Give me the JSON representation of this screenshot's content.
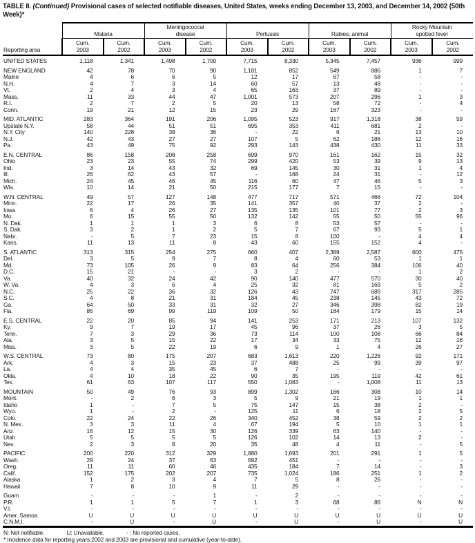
{
  "title": {
    "prefix": "TABLE II.",
    "continued": "(Continued)",
    "rest": "Provisional cases of selected notifiable diseases, United States, weeks ending December 13, 2003, and December 14, 2002 (50th Week)*"
  },
  "table": {
    "reporting_area_label": "Reporting area",
    "groups": [
      "Malaria",
      "Meningococcal\ndisease",
      "Pertussis",
      "Rabies, animal",
      "Rocky Mountain\nspotted fever"
    ],
    "col_headers": [
      "Cum.\n2003",
      "Cum.\n2002"
    ],
    "sections": [
      [
        {
          "a": "UNITED STATES",
          "v": [
            "1,118",
            "1,341",
            "1,498",
            "1,700",
            "7,715",
            "8,330",
            "5,345",
            "7,457",
            "936",
            "999"
          ]
        }
      ],
      [
        {
          "a": "NEW ENGLAND",
          "v": [
            "42",
            "78",
            "70",
            "90",
            "1,181",
            "852",
            "549",
            "886",
            "1",
            "7"
          ]
        },
        {
          "a": "Maine",
          "v": [
            "4",
            "6",
            "6",
            "5",
            "12",
            "17",
            "67",
            "58",
            "-",
            "-"
          ]
        },
        {
          "a": "N.H.",
          "v": [
            "4",
            "7",
            "3",
            "14",
            "60",
            "57",
            "13",
            "48",
            "-",
            "-"
          ]
        },
        {
          "a": "Vt.",
          "v": [
            "2",
            "4",
            "3",
            "4",
            "65",
            "163",
            "37",
            "89",
            "-",
            "-"
          ]
        },
        {
          "a": "Mass.",
          "v": [
            "11",
            "33",
            "44",
            "47",
            "1,001",
            "573",
            "207",
            "296",
            "1",
            "3"
          ]
        },
        {
          "a": "R.I.",
          "v": [
            "2",
            "7",
            "2",
            "5",
            "20",
            "13",
            "58",
            "72",
            "-",
            "4"
          ]
        },
        {
          "a": "Conn.",
          "v": [
            "19",
            "21",
            "12",
            "15",
            "23",
            "29",
            "167",
            "323",
            "-",
            "-"
          ]
        }
      ],
      [
        {
          "a": "MID. ATLANTIC",
          "v": [
            "283",
            "364",
            "191",
            "206",
            "1,095",
            "523",
            "917",
            "1,318",
            "38",
            "59"
          ]
        },
        {
          "a": "Upstate N.Y.",
          "v": [
            "58",
            "44",
            "51",
            "51",
            "695",
            "353",
            "411",
            "681",
            "2",
            "-"
          ]
        },
        {
          "a": "N.Y. City",
          "v": [
            "140",
            "228",
            "38",
            "36",
            "-",
            "22",
            "6",
            "21",
            "13",
            "10"
          ]
        },
        {
          "a": "N.J.",
          "v": [
            "42",
            "43",
            "27",
            "27",
            "107",
            "5",
            "62",
            "186",
            "12",
            "16"
          ]
        },
        {
          "a": "Pa.",
          "v": [
            "43",
            "49",
            "75",
            "92",
            "293",
            "143",
            "438",
            "430",
            "11",
            "33"
          ]
        }
      ],
      [
        {
          "a": "E.N. CENTRAL",
          "v": [
            "86",
            "158",
            "208",
            "258",
            "699",
            "970",
            "161",
            "162",
            "15",
            "32"
          ]
        },
        {
          "a": "Ohio",
          "v": [
            "23",
            "23",
            "55",
            "74",
            "299",
            "420",
            "53",
            "39",
            "9",
            "13"
          ]
        },
        {
          "a": "Ind.",
          "v": [
            "3",
            "14",
            "43",
            "32",
            "69",
            "145",
            "30",
            "31",
            "1",
            "4"
          ]
        },
        {
          "a": "Ill.",
          "v": [
            "26",
            "62",
            "43",
            "57",
            "-",
            "168",
            "24",
            "31",
            "-",
            "12"
          ]
        },
        {
          "a": "Mich.",
          "v": [
            "24",
            "45",
            "46",
            "45",
            "116",
            "60",
            "47",
            "46",
            "5",
            "3"
          ]
        },
        {
          "a": "Wis.",
          "v": [
            "10",
            "14",
            "21",
            "50",
            "215",
            "177",
            "7",
            "15",
            "-",
            "-"
          ]
        }
      ],
      [
        {
          "a": "W.N. CENTRAL",
          "v": [
            "49",
            "57",
            "127",
            "148",
            "477",
            "717",
            "571",
            "466",
            "72",
            "104"
          ]
        },
        {
          "a": "Minn.",
          "v": [
            "22",
            "17",
            "26",
            "35",
            "141",
            "357",
            "40",
            "37",
            "2",
            "-"
          ]
        },
        {
          "a": "Iowa",
          "v": [
            "6",
            "4",
            "26",
            "27",
            "135",
            "135",
            "101",
            "77",
            "2",
            "3"
          ]
        },
        {
          "a": "Mo.",
          "v": [
            "6",
            "15",
            "55",
            "50",
            "132",
            "142",
            "55",
            "50",
            "55",
            "96"
          ]
        },
        {
          "a": "N. Dak.",
          "v": [
            "1",
            "1",
            "1",
            "3",
            "6",
            "8",
            "53",
            "57",
            "-",
            "-"
          ]
        },
        {
          "a": "S. Dak.",
          "v": [
            "3",
            "2",
            "1",
            "2",
            "5",
            "7",
            "67",
            "93",
            "5",
            "1"
          ]
        },
        {
          "a": "Nebr.",
          "v": [
            "-",
            "5",
            "7",
            "23",
            "15",
            "8",
            "100",
            "-",
            "4",
            "4"
          ]
        },
        {
          "a": "Kans.",
          "v": [
            "11",
            "13",
            "11",
            "8",
            "43",
            "60",
            "155",
            "152",
            "4",
            "-"
          ]
        }
      ],
      [
        {
          "a": "S. ATLANTIC",
          "v": [
            "313",
            "315",
            "254",
            "275",
            "660",
            "407",
            "2,389",
            "2,587",
            "600",
            "475"
          ]
        },
        {
          "a": "Del.",
          "v": [
            "3",
            "5",
            "9",
            "7",
            "8",
            "4",
            "60",
            "53",
            "1",
            "1"
          ]
        },
        {
          "a": "Md.",
          "v": [
            "73",
            "105",
            "26",
            "9",
            "83",
            "64",
            "256",
            "384",
            "106",
            "40"
          ]
        },
        {
          "a": "D.C.",
          "v": [
            "15",
            "21",
            "-",
            "-",
            "3",
            "2",
            "-",
            "-",
            "1",
            "2"
          ]
        },
        {
          "a": "Va.",
          "v": [
            "40",
            "32",
            "24",
            "42",
            "90",
            "140",
            "477",
            "570",
            "30",
            "40"
          ]
        },
        {
          "a": "W. Va.",
          "v": [
            "4",
            "3",
            "6",
            "4",
            "25",
            "32",
            "81",
            "169",
            "5",
            "2"
          ]
        },
        {
          "a": "N.C.",
          "v": [
            "25",
            "22",
            "36",
            "32",
            "126",
            "43",
            "747",
            "689",
            "317",
            "285"
          ]
        },
        {
          "a": "S.C.",
          "v": [
            "4",
            "8",
            "21",
            "31",
            "184",
            "45",
            "238",
            "145",
            "43",
            "72"
          ]
        },
        {
          "a": "Ga.",
          "v": [
            "64",
            "50",
            "33",
            "31",
            "32",
            "27",
            "346",
            "398",
            "82",
            "19"
          ]
        },
        {
          "a": "Fla.",
          "v": [
            "85",
            "69",
            "99",
            "119",
            "109",
            "50",
            "184",
            "179",
            "15",
            "14"
          ]
        }
      ],
      [
        {
          "a": "E.S. CENTRAL",
          "v": [
            "22",
            "20",
            "85",
            "94",
            "141",
            "253",
            "171",
            "213",
            "107",
            "132"
          ]
        },
        {
          "a": "Ky.",
          "v": [
            "9",
            "7",
            "19",
            "17",
            "45",
            "96",
            "37",
            "26",
            "3",
            "5"
          ]
        },
        {
          "a": "Tenn.",
          "v": [
            "7",
            "3",
            "29",
            "36",
            "73",
            "114",
            "100",
            "108",
            "66",
            "84"
          ]
        },
        {
          "a": "Ala.",
          "v": [
            "3",
            "5",
            "15",
            "22",
            "17",
            "34",
            "33",
            "75",
            "12",
            "16"
          ]
        },
        {
          "a": "Miss.",
          "v": [
            "3",
            "5",
            "22",
            "19",
            "6",
            "9",
            "1",
            "4",
            "26",
            "27"
          ]
        }
      ],
      [
        {
          "a": "W.S. CENTRAL",
          "v": [
            "73",
            "80",
            "175",
            "207",
            "683",
            "1,613",
            "220",
            "1,226",
            "92",
            "171"
          ]
        },
        {
          "a": "Ark.",
          "v": [
            "4",
            "3",
            "15",
            "23",
            "37",
            "488",
            "25",
            "99",
            "39",
            "97"
          ]
        },
        {
          "a": "La.",
          "v": [
            "4",
            "4",
            "35",
            "45",
            "6",
            "7",
            "-",
            "-",
            "-",
            "-"
          ]
        },
        {
          "a": "Okla.",
          "v": [
            "4",
            "10",
            "18",
            "22",
            "90",
            "35",
            "195",
            "119",
            "42",
            "61"
          ]
        },
        {
          "a": "Tex.",
          "v": [
            "61",
            "63",
            "107",
            "117",
            "550",
            "1,083",
            "-",
            "1,008",
            "11",
            "13"
          ]
        }
      ],
      [
        {
          "a": "MOUNTAIN",
          "v": [
            "50",
            "49",
            "76",
            "93",
            "899",
            "1,302",
            "166",
            "308",
            "10",
            "14"
          ]
        },
        {
          "a": "Mont.",
          "v": [
            "-",
            "2",
            "6",
            "3",
            "5",
            "9",
            "21",
            "19",
            "1",
            "1"
          ]
        },
        {
          "a": "Idaho",
          "v": [
            "1",
            "-",
            "7",
            "5",
            "75",
            "147",
            "15",
            "38",
            "2",
            "-"
          ]
        },
        {
          "a": "Wyo.",
          "v": [
            "1",
            "-",
            "2",
            "-",
            "125",
            "11",
            "6",
            "18",
            "2",
            "5"
          ]
        },
        {
          "a": "Colo.",
          "v": [
            "22",
            "24",
            "22",
            "26",
            "340",
            "452",
            "38",
            "59",
            "2",
            "2"
          ]
        },
        {
          "a": "N. Mex.",
          "v": [
            "3",
            "3",
            "11",
            "4",
            "67",
            "194",
            "5",
            "10",
            "1",
            "1"
          ]
        },
        {
          "a": "Ariz.",
          "v": [
            "16",
            "12",
            "15",
            "30",
            "126",
            "339",
            "63",
            "140",
            "-",
            "-"
          ]
        },
        {
          "a": "Utah",
          "v": [
            "5",
            "5",
            "5",
            "5",
            "126",
            "102",
            "14",
            "13",
            "2",
            "-"
          ]
        },
        {
          "a": "Nev.",
          "v": [
            "2",
            "3",
            "8",
            "20",
            "35",
            "48",
            "4",
            "11",
            "-",
            "5"
          ]
        }
      ],
      [
        {
          "a": "PACIFIC",
          "v": [
            "200",
            "220",
            "312",
            "329",
            "1,880",
            "1,693",
            "201",
            "291",
            "1",
            "5"
          ]
        },
        {
          "a": "Wash.",
          "v": [
            "29",
            "24",
            "37",
            "63",
            "692",
            "451",
            "-",
            "-",
            "-",
            "-"
          ]
        },
        {
          "a": "Oreg.",
          "v": [
            "11",
            "11",
            "60",
            "46",
            "435",
            "184",
            "7",
            "14",
            "-",
            "3"
          ]
        },
        {
          "a": "Calif.",
          "v": [
            "152",
            "175",
            "202",
            "207",
            "735",
            "1,024",
            "186",
            "251",
            "1",
            "2"
          ]
        },
        {
          "a": "Alaska",
          "v": [
            "1",
            "2",
            "3",
            "4",
            "7",
            "5",
            "8",
            "26",
            "-",
            "-"
          ]
        },
        {
          "a": "Hawaii",
          "v": [
            "7",
            "8",
            "10",
            "9",
            "11",
            "29",
            "-",
            "-",
            "-",
            "-"
          ]
        }
      ],
      [
        {
          "a": "Guam",
          "v": [
            "-",
            "-",
            "-",
            "1",
            "-",
            "2",
            "-",
            "-",
            "-",
            "-"
          ]
        },
        {
          "a": "P.R.",
          "v": [
            "1",
            "1",
            "5",
            "7",
            "1",
            "3",
            "68",
            "86",
            "N",
            "N"
          ]
        },
        {
          "a": "V.I.",
          "v": [
            "-",
            "-",
            "-",
            "-",
            "-",
            "-",
            "-",
            "-",
            "-",
            "-"
          ]
        },
        {
          "a": "Amer. Samoa",
          "v": [
            "U",
            "U",
            "U",
            "U",
            "U",
            "U",
            "U",
            "U",
            "U",
            "U"
          ]
        },
        {
          "a": "C.N.M.I.",
          "v": [
            "-",
            "U",
            "-",
            "U",
            "-",
            "U",
            "-",
            "U",
            "-",
            "U"
          ]
        }
      ]
    ]
  },
  "footnotes": {
    "not_notifiable": "N: Not notifiable.",
    "unavailable": "U: Unavailable.",
    "no_reported": "- : No reported cases.",
    "incidence_note": "* Incidence data for reporting years 2002 and 2003 are provisional and cumulative (year-to-date)."
  }
}
